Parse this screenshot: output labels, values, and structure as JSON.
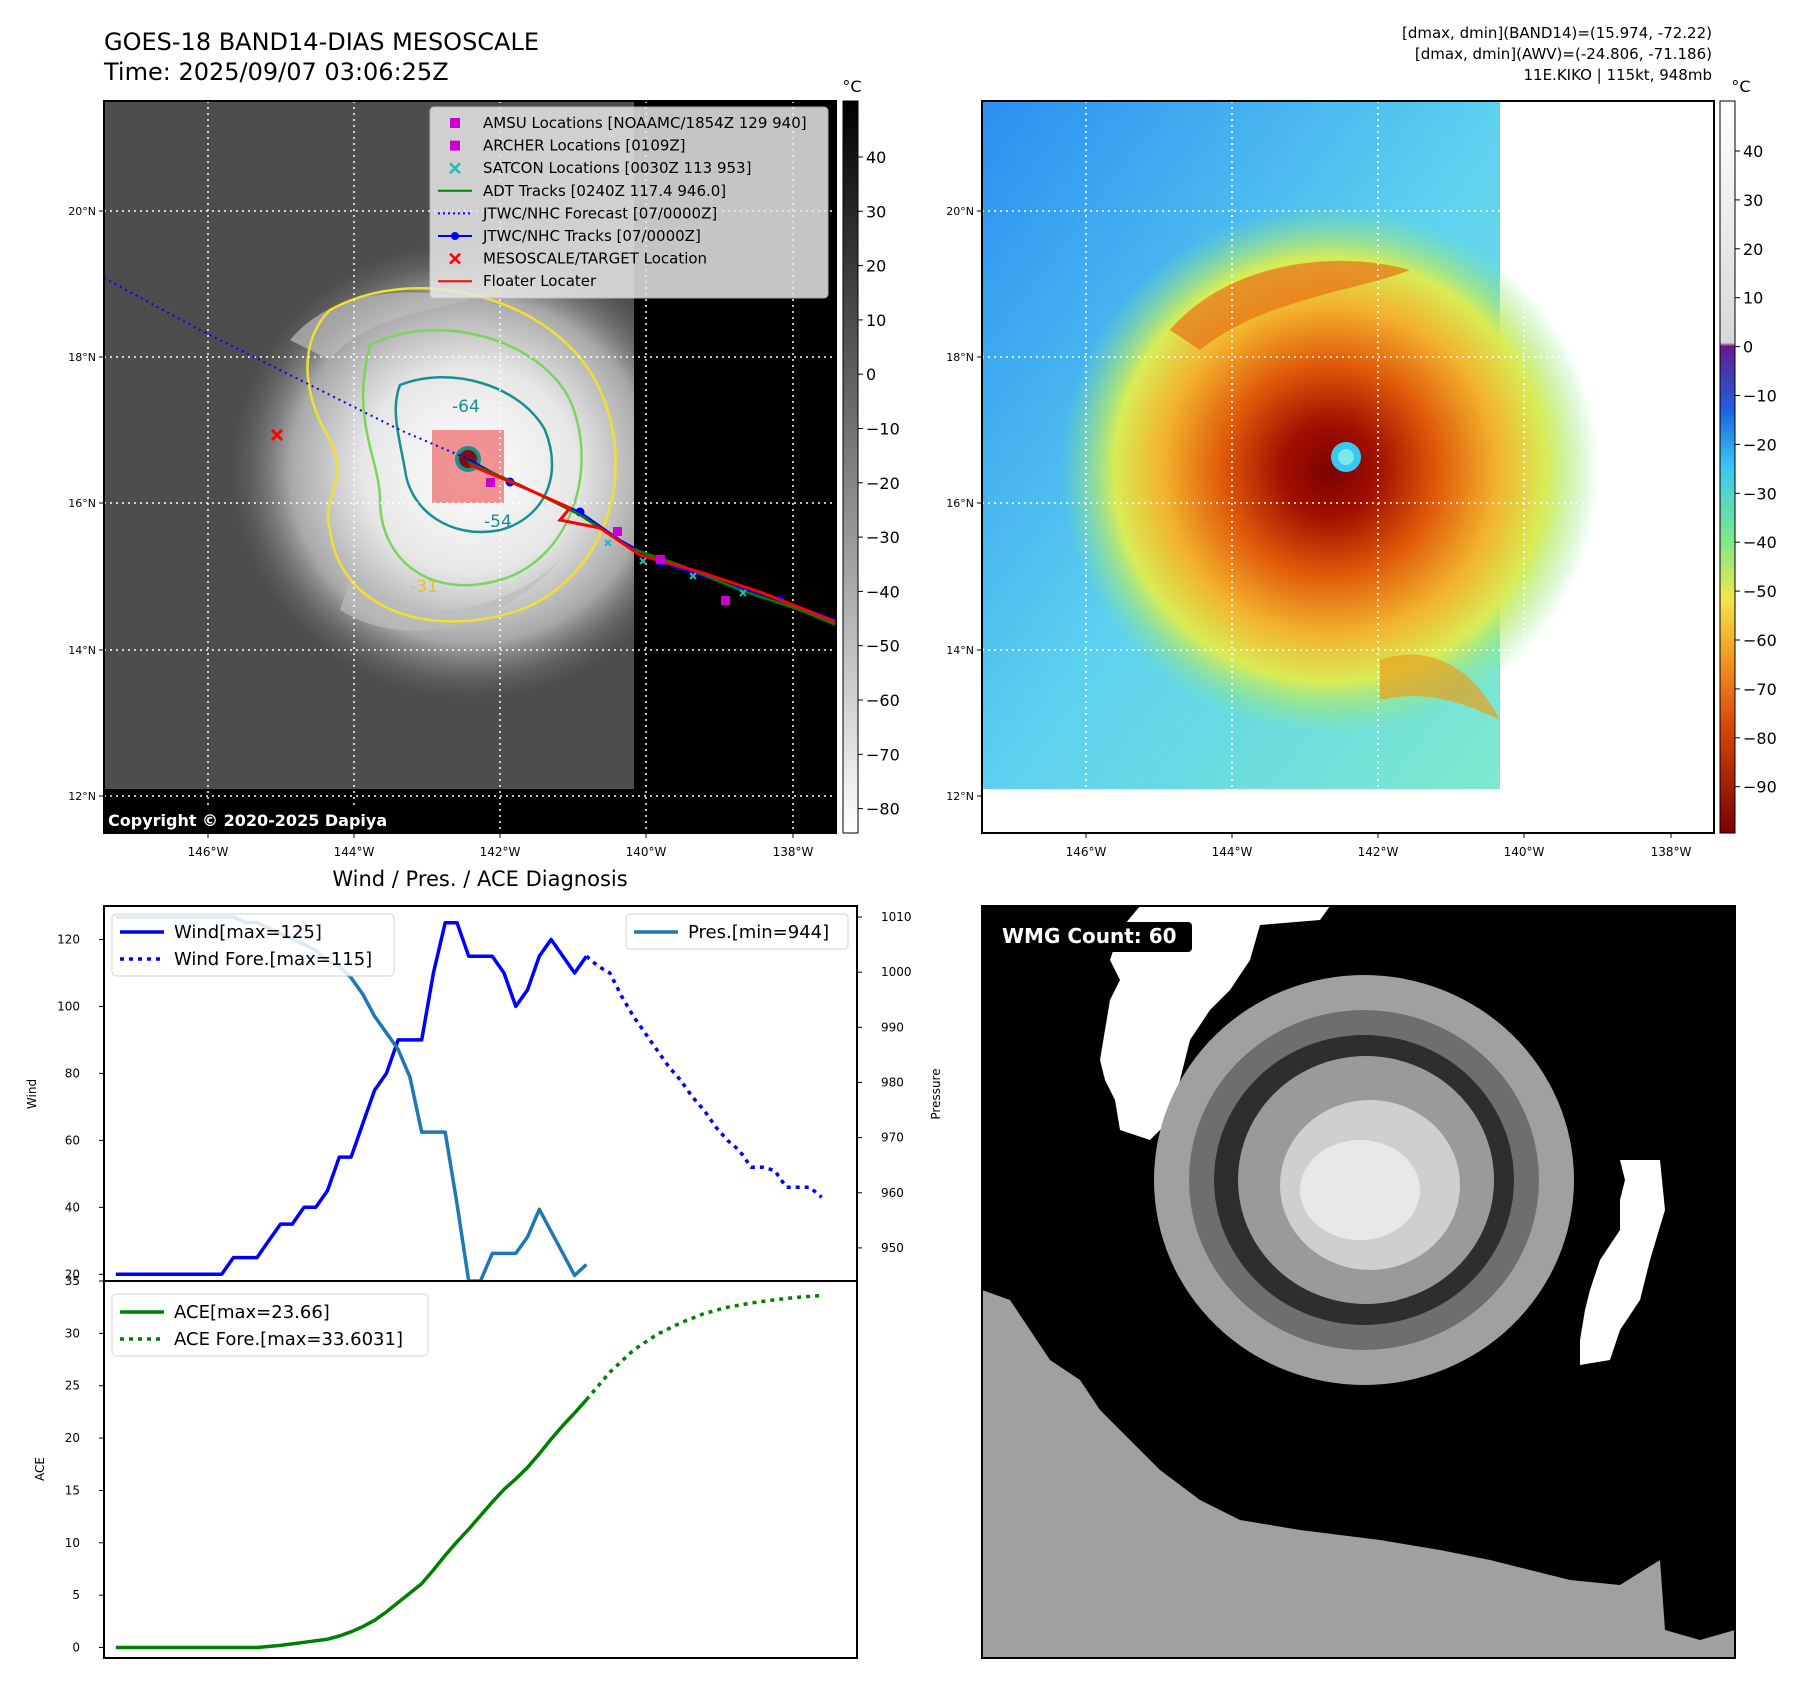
{
  "header": {
    "title_line1": "GOES-18 BAND14-DIAS MESOSCALE",
    "title_line2": "Time: 2025/09/07 03:06:25Z",
    "stats_line1": "[dmax, dmin](BAND14)=(15.974, -72.22)",
    "stats_line2": "[dmax, dmin](AWV)=(-24.806, -71.186)",
    "stats_line3": "11E.KIKO | 115kt, 948mb"
  },
  "map": {
    "lat_ticks": [
      "20°N",
      "18°N",
      "16°N",
      "14°N",
      "12°N"
    ],
    "lon_ticks": [
      "146°W",
      "144°W",
      "142°W",
      "140°W",
      "138°W"
    ],
    "copyright": "Copyright © 2020-2025 Dapiya",
    "contour_labels": [
      "-64",
      "-54",
      "-31"
    ]
  },
  "legend_map": [
    {
      "label": "AMSU Locations [NOAAMC/1854Z 129 940]",
      "marker": "square",
      "color": "#cc00cc"
    },
    {
      "label": "ARCHER Locations [0109Z]",
      "marker": "square",
      "color": "#cc00cc"
    },
    {
      "label": "SATCON Locations [0030Z 113 953]",
      "marker": "x",
      "color": "#22bbbb"
    },
    {
      "label": "ADT Tracks [0240Z 117.4 946.0]",
      "marker": "line",
      "color": "#008000"
    },
    {
      "label": "JTWC/NHC Forecast [07/0000Z]",
      "marker": "dotted",
      "color": "#0000ff"
    },
    {
      "label": "JTWC/NHC Tracks [07/0000Z]",
      "marker": "line-dot",
      "color": "#0000ff"
    },
    {
      "label": "MESOSCALE/TARGET Location",
      "marker": "x",
      "color": "#ff0000"
    },
    {
      "label": "Floater Locater",
      "marker": "line",
      "color": "#ff0000"
    }
  ],
  "colorbar_gray": {
    "unit": "°C",
    "ticks": [
      "40",
      "30",
      "20",
      "10",
      "0",
      "−10",
      "−20",
      "−30",
      "−40",
      "−50",
      "−60",
      "−70",
      "−80"
    ]
  },
  "colorbar_color": {
    "unit": "°C",
    "ticks": [
      "40",
      "30",
      "20",
      "10",
      "0",
      "−10",
      "−20",
      "−30",
      "−40",
      "−50",
      "−60",
      "−70",
      "−80",
      "−90"
    ]
  },
  "chart_data": [
    {
      "type": "line",
      "title": "Wind / Pres. / ACE Diagnosis",
      "ylabel": "Wind",
      "ylabel_right": "Pressure",
      "ylim": [
        18,
        130
      ],
      "ylim_right": [
        944,
        1012
      ],
      "xlim": [
        -1,
        63
      ],
      "yticks": [
        "120",
        "100",
        "80",
        "60",
        "40",
        "20"
      ],
      "yticks_right": [
        "1010",
        "1000",
        "990",
        "980",
        "970",
        "960",
        "950"
      ],
      "legend_left": [
        "Wind[max=125]",
        "Wind Fore.[max=115]"
      ],
      "legend_right": [
        "Pres.[min=944]"
      ],
      "series": [
        {
          "name": "Wind[max=125]",
          "color": "#0000ff",
          "style": "solid",
          "x": [
            0,
            1,
            2,
            3,
            4,
            5,
            6,
            7,
            8,
            9,
            10,
            11,
            12,
            13,
            14,
            15,
            16,
            17,
            18,
            19,
            20,
            21,
            22,
            23,
            24,
            25,
            26,
            27,
            28,
            29,
            30,
            31,
            32,
            33,
            34,
            35,
            36,
            37,
            38,
            39,
            40
          ],
          "y": [
            20,
            20,
            20,
            20,
            20,
            20,
            20,
            20,
            20,
            20,
            25,
            25,
            25,
            30,
            35,
            35,
            40,
            40,
            45,
            55,
            55,
            65,
            75,
            80,
            90,
            90,
            90,
            110,
            125,
            125,
            115,
            115,
            115,
            110,
            100,
            105,
            115,
            120,
            115,
            110,
            115
          ]
        },
        {
          "name": "Wind Fore.[max=115]",
          "color": "#0000ff",
          "style": "dotted",
          "x": [
            40,
            41,
            42,
            43,
            44,
            45,
            46,
            47,
            48,
            49,
            50,
            51,
            52,
            53,
            54,
            55,
            56,
            57,
            58,
            59,
            60
          ],
          "y": [
            115,
            112,
            110,
            103,
            97,
            92,
            87,
            82,
            78,
            73,
            69,
            64,
            60,
            57,
            52,
            52,
            51,
            46,
            46,
            46,
            43
          ]
        },
        {
          "name": "Pres.[min=944]",
          "color": "#1f77b4",
          "style": "solid",
          "axis": "right",
          "x": [
            0,
            1,
            2,
            3,
            4,
            5,
            6,
            7,
            8,
            9,
            10,
            11,
            12,
            13,
            14,
            15,
            16,
            17,
            18,
            19,
            20,
            21,
            22,
            23,
            24,
            25,
            26,
            27,
            28,
            29,
            30,
            31,
            32,
            33,
            34,
            35,
            36,
            37,
            38,
            39,
            40
          ],
          "y": [
            1010,
            1010,
            1010,
            1010,
            1010,
            1010,
            1010,
            1010,
            1010,
            1010,
            1010,
            1009,
            1009,
            1008,
            1007,
            1006,
            1005,
            1004,
            1002,
            1001,
            999,
            996,
            992,
            989,
            986,
            981,
            971,
            971,
            971,
            958,
            944,
            944,
            949,
            949,
            949,
            952,
            957,
            953,
            949,
            945,
            947
          ]
        }
      ]
    },
    {
      "type": "line",
      "ylabel": "ACE",
      "ylim": [
        -1,
        35
      ],
      "xlim": [
        -1,
        63
      ],
      "yticks": [
        "35",
        "30",
        "25",
        "20",
        "15",
        "10",
        "5",
        "0"
      ],
      "legend": [
        "ACE[max=23.66]",
        "ACE Fore.[max=33.6031]"
      ],
      "series": [
        {
          "name": "ACE[max=23.66]",
          "color": "#008000",
          "style": "solid",
          "x": [
            0,
            4,
            8,
            12,
            14,
            16,
            18,
            19,
            20,
            21,
            22,
            23,
            24,
            25,
            26,
            27,
            28,
            29,
            30,
            31,
            32,
            33,
            34,
            35,
            36,
            37,
            38,
            39,
            40
          ],
          "y": [
            0,
            0,
            0,
            0,
            0.2,
            0.5,
            0.8,
            1.1,
            1.5,
            2,
            2.6,
            3.4,
            4.3,
            5.2,
            6.1,
            7.4,
            8.8,
            10.1,
            11.3,
            12.6,
            13.9,
            15.1,
            16.1,
            17.2,
            18.5,
            19.9,
            21.2,
            22.4,
            23.66
          ]
        },
        {
          "name": "ACE Fore.[max=33.6031]",
          "color": "#008000",
          "style": "dotted",
          "x": [
            40,
            42,
            44,
            46,
            48,
            50,
            52,
            54,
            56,
            58,
            60
          ],
          "y": [
            23.66,
            26.3,
            28.4,
            29.9,
            31.0,
            31.9,
            32.5,
            32.9,
            33.2,
            33.45,
            33.6031
          ]
        }
      ]
    }
  ],
  "wmg": {
    "label": "WMG Count: 60"
  }
}
